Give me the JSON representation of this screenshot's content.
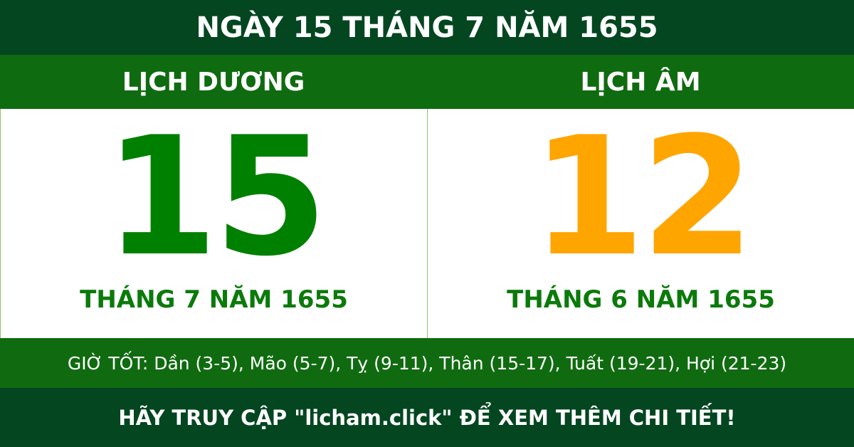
{
  "title": "NGÀY 15 THÁNG 7 NĂM 1655",
  "solar": {
    "heading": "LỊCH DƯƠNG",
    "day": "15",
    "month_year": "THÁNG 7 NĂM 1655",
    "color": "#008000"
  },
  "lunar": {
    "heading": "LỊCH ÂM",
    "day": "12",
    "month_year": "THÁNG 6 NĂM 1655",
    "color": "#FFA500"
  },
  "good_hours": "GIỜ TỐT: Dần (3-5), Mão (5-7), Tỵ (9-11), Thân (15-17), Tuất (19-21), Hợi (21-23)",
  "footer": "HÃY TRUY CẬP \"licham.click\" ĐỂ XEM THÊM CHI TIẾT!"
}
